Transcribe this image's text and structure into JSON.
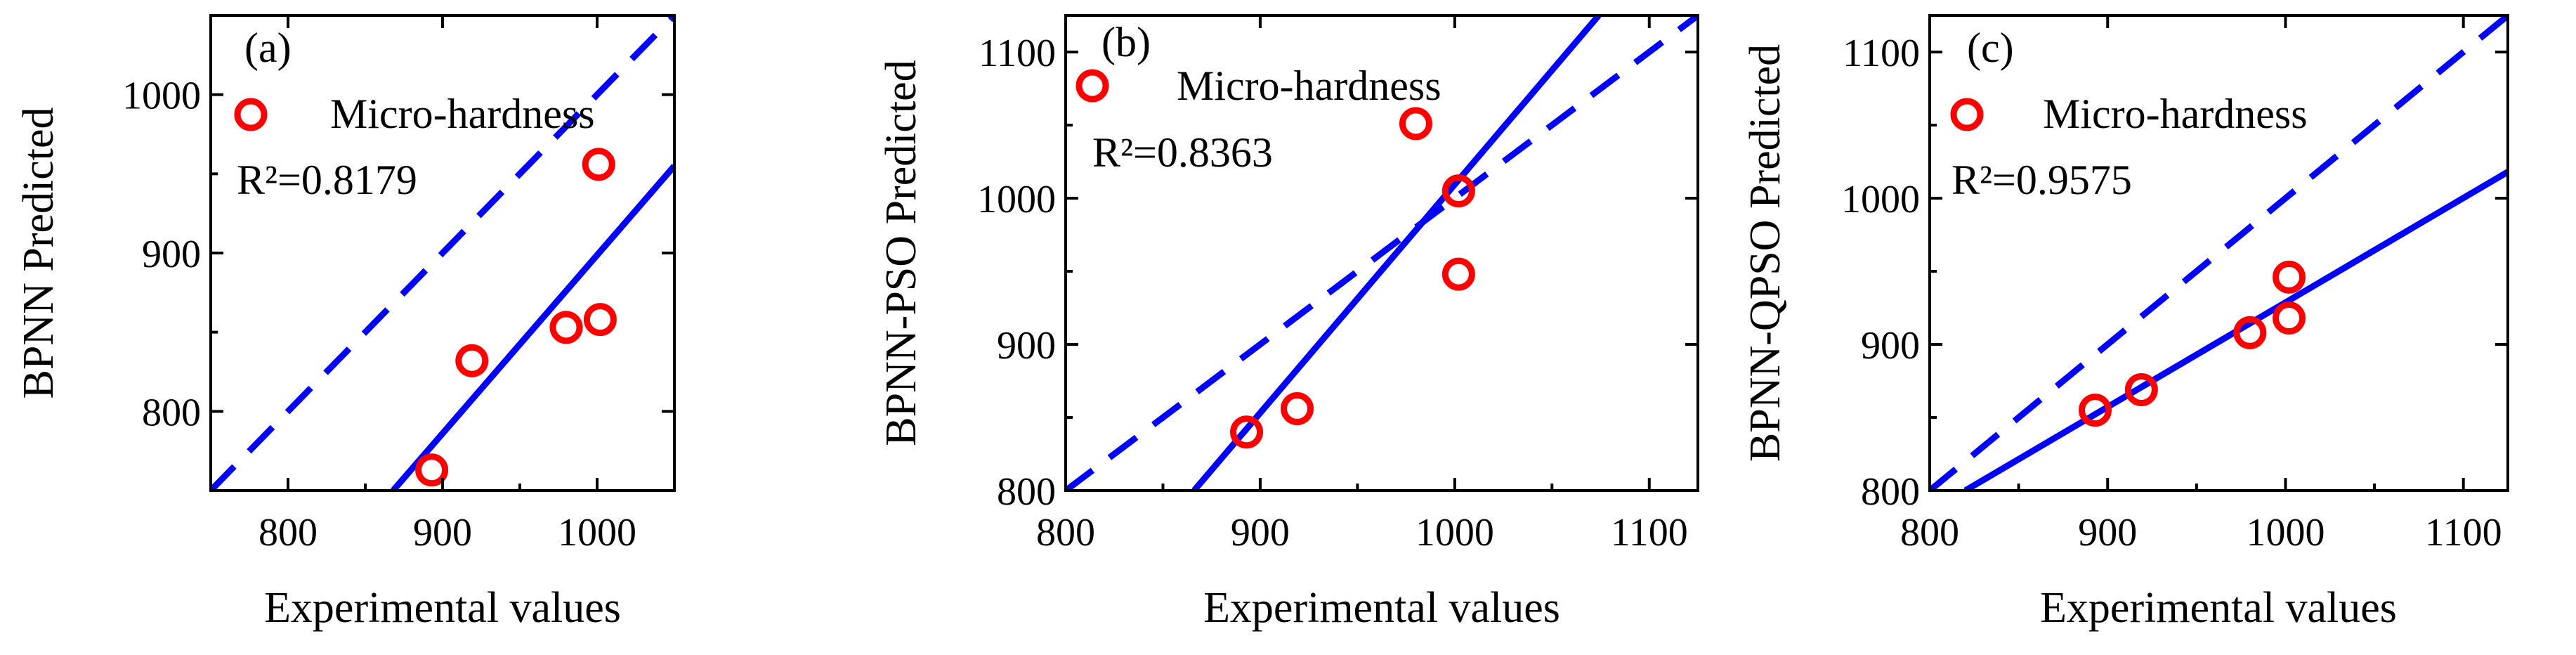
{
  "chart_data": [
    {
      "type": "scatter",
      "panel_label": "(a)",
      "xlabel": "Experimental values",
      "ylabel": "BPNN Predicted",
      "xlim": [
        750,
        1050
      ],
      "ylim": [
        750,
        1050
      ],
      "xticks": [
        800,
        900,
        1000
      ],
      "yticks": [
        800,
        900,
        1000
      ],
      "legend": "Micro-hardness",
      "r2_text": "R²=0.8179",
      "points": [
        {
          "x": 893,
          "y": 763
        },
        {
          "x": 919,
          "y": 832
        },
        {
          "x": 980,
          "y": 853
        },
        {
          "x": 1002,
          "y": 858
        },
        {
          "x": 1001,
          "y": 956
        }
      ],
      "fit_line": {
        "p1": [
          868,
          750
        ],
        "p2": [
          1050,
          955
        ]
      },
      "ideal_line": {
        "p1": [
          750,
          750
        ],
        "p2": [
          1050,
          1050
        ]
      },
      "colors": {
        "points": "#ff0000",
        "lines": "#0000ff"
      }
    },
    {
      "type": "scatter",
      "panel_label": "(b)",
      "xlabel": "Experimental values",
      "ylabel": "BPNN-PSO Predicted",
      "xlim": [
        800,
        1125
      ],
      "ylim": [
        800,
        1125
      ],
      "xticks": [
        800,
        900,
        1000,
        1100
      ],
      "yticks": [
        800,
        900,
        1000,
        1100
      ],
      "legend": "Micro-hardness",
      "r2_text": "R²=0.8363",
      "points": [
        {
          "x": 893,
          "y": 840
        },
        {
          "x": 919,
          "y": 856
        },
        {
          "x": 980,
          "y": 1051
        },
        {
          "x": 1002,
          "y": 1005
        },
        {
          "x": 1002,
          "y": 948
        }
      ],
      "fit_line": {
        "p1": [
          866,
          800
        ],
        "p2": [
          1074,
          1125
        ]
      },
      "ideal_line": {
        "p1": [
          800,
          800
        ],
        "p2": [
          1125,
          1125
        ]
      },
      "colors": {
        "points": "#ff0000",
        "lines": "#0000ff"
      }
    },
    {
      "type": "scatter",
      "panel_label": "(c)",
      "xlabel": "Experimental values",
      "ylabel": "BPNN-QPSO Predicted",
      "xlim": [
        800,
        1125
      ],
      "ylim": [
        800,
        1125
      ],
      "xticks": [
        800,
        900,
        1000,
        1100
      ],
      "yticks": [
        800,
        900,
        1000,
        1100
      ],
      "legend": "Micro-hardness",
      "r2_text": "R²=0.9575",
      "points": [
        {
          "x": 893,
          "y": 855
        },
        {
          "x": 919,
          "y": 869
        },
        {
          "x": 980,
          "y": 908
        },
        {
          "x": 1002,
          "y": 918
        },
        {
          "x": 1002,
          "y": 946
        }
      ],
      "fit_line": {
        "p1": [
          820,
          800
        ],
        "p2": [
          1125,
          1018
        ]
      },
      "ideal_line": {
        "p1": [
          800,
          800
        ],
        "p2": [
          1125,
          1125
        ]
      },
      "colors": {
        "points": "#ff0000",
        "lines": "#0000ff"
      }
    }
  ]
}
